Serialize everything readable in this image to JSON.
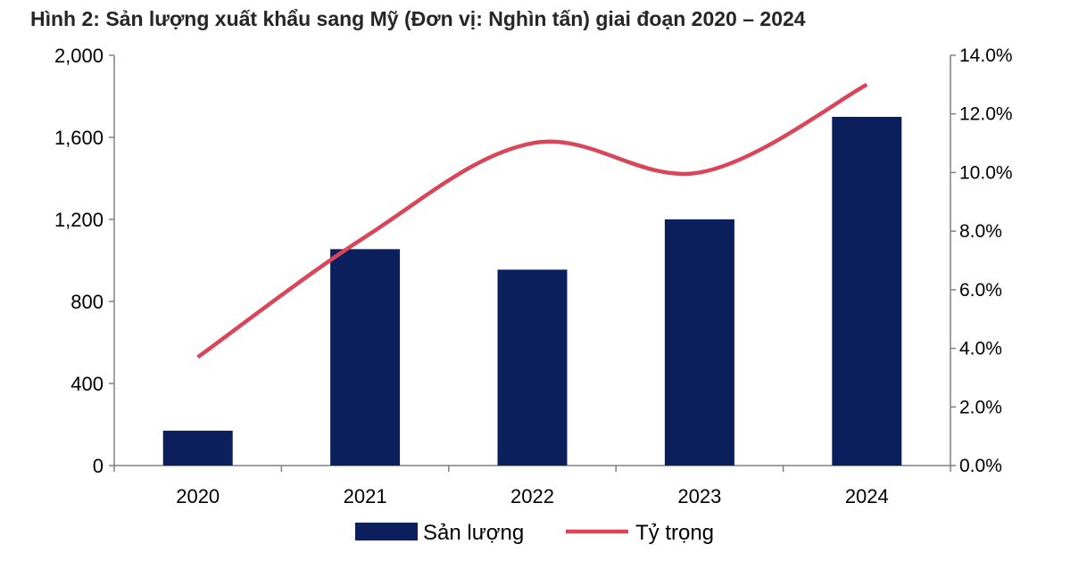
{
  "chart_data": {
    "type": "bar",
    "title": "Hình 2: Sản lượng xuất khẩu sang Mỹ (Đơn vị:  Nghìn tấn) giai đoạn 2020 – 2024",
    "categories": [
      "2020",
      "2021",
      "2022",
      "2023",
      "2024"
    ],
    "series": [
      {
        "name": "Sản lượng",
        "type": "bar",
        "axis": "left",
        "color": "#0b1f5c",
        "values": [
          170,
          1055,
          955,
          1200,
          1700
        ]
      },
      {
        "name": "Tỷ trọng",
        "type": "line",
        "axis": "right",
        "color": "#d9465a",
        "values": [
          3.7,
          7.8,
          11.0,
          10.0,
          13.0
        ]
      }
    ],
    "y_left": {
      "min": 0,
      "max": 2000,
      "ticks": [
        0,
        400,
        800,
        1200,
        1600,
        2000
      ],
      "tick_labels": [
        "0",
        "400",
        "800",
        "1,200",
        "1,600",
        "2,000"
      ]
    },
    "y_right": {
      "min": 0,
      "max": 14,
      "ticks": [
        0,
        2,
        4,
        6,
        8,
        10,
        12,
        14
      ],
      "tick_labels": [
        "0.0%",
        "2.0%",
        "4.0%",
        "6.0%",
        "8.0%",
        "10.0%",
        "12.0%",
        "14.0%"
      ]
    },
    "grid": false,
    "legend_position": "bottom"
  }
}
